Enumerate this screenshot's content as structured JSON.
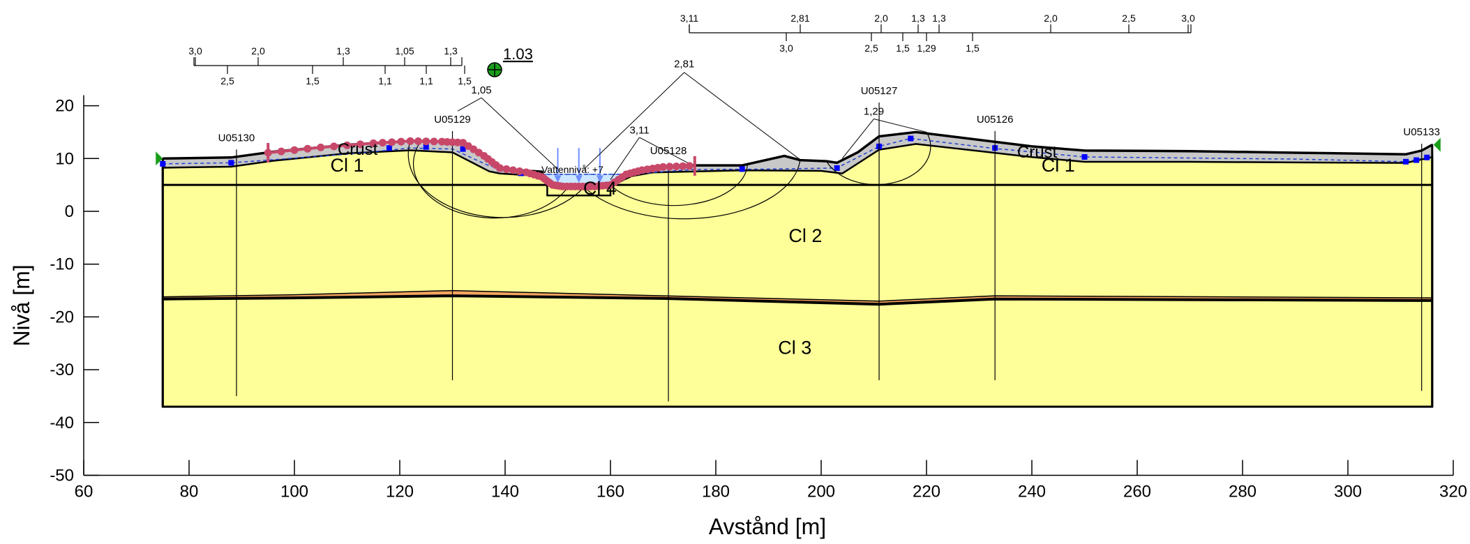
{
  "axes": {
    "x_label": "Avstånd [m]",
    "y_label": "Nivå [m]",
    "x_ticks": [
      60,
      80,
      100,
      120,
      140,
      160,
      180,
      200,
      220,
      240,
      260,
      280,
      300,
      320
    ],
    "y_ticks": [
      20,
      10,
      0,
      -10,
      -20,
      -30,
      -40,
      -50
    ],
    "xlim": [
      60,
      320
    ],
    "ylim": [
      -50,
      20
    ]
  },
  "colors": {
    "clay": "#ffff99",
    "crust": "#c8c8c8",
    "sand_lens": "#f4a460",
    "water": "#cce6ff",
    "surface_marker": "#c8486a",
    "piezometer": "#0000ff",
    "probability_circle": "#1a9e1a",
    "support": "#1a9e1a"
  },
  "layers": [
    {
      "name": "Cl 1",
      "x": 110,
      "y": 7.5
    },
    {
      "name": "Cl 1",
      "x": 245,
      "y": 7.5
    },
    {
      "name": "Cl 2",
      "x": 197,
      "y": -5.8
    },
    {
      "name": "Cl 3",
      "x": 195,
      "y": -27
    },
    {
      "name": "Cl 4",
      "x": 158,
      "y": 3.2
    }
  ],
  "crust_labels": [
    {
      "text": "Crust",
      "x": 112,
      "y": 10.7
    },
    {
      "text": "Crust",
      "x": 241,
      "y": 10.2
    }
  ],
  "boreholes": [
    {
      "id": "U05130",
      "x": 89,
      "top": 13.3,
      "bottom": -35
    },
    {
      "id": "U05129",
      "x": 130,
      "top": 16.8,
      "bottom": -32
    },
    {
      "id": "U05128",
      "x": 171,
      "top": 10.8,
      "bottom": -36
    },
    {
      "id": "U05127",
      "x": 211,
      "top": 22.2,
      "bottom": -32
    },
    {
      "id": "U05126",
      "x": 233,
      "top": 16.8,
      "bottom": -32
    },
    {
      "id": "U05133",
      "x": 314,
      "top": 14.4,
      "bottom": -34
    }
  ],
  "water_level_label": "Vattennivå: +7",
  "safety_factor_result": "1.03",
  "safety_labels": [
    {
      "text": "1,05",
      "x": 135.5,
      "y": 22.3
    },
    {
      "text": "2,81",
      "x": 174,
      "y": 27.3
    },
    {
      "text": "3,11",
      "x": 165.5,
      "y": 14.7
    },
    {
      "text": "1,29",
      "x": 210,
      "y": 18.3
    }
  ],
  "left_scale": {
    "top_labels": [
      "3,0",
      "2,0",
      "1,3",
      "1,05",
      "1,3"
    ],
    "bottom_labels": [
      "2,5",
      "1,5",
      "1,1",
      "1,1",
      "1,5"
    ]
  },
  "right_scale": {
    "top_labels": [
      "3,11",
      "2,81",
      "2,0",
      "1,3",
      "1,3",
      "2,0",
      "2,5",
      "3,0"
    ],
    "bottom_labels": [
      "3,0",
      "2,5",
      "1,5",
      "1,29",
      "1,5"
    ]
  }
}
